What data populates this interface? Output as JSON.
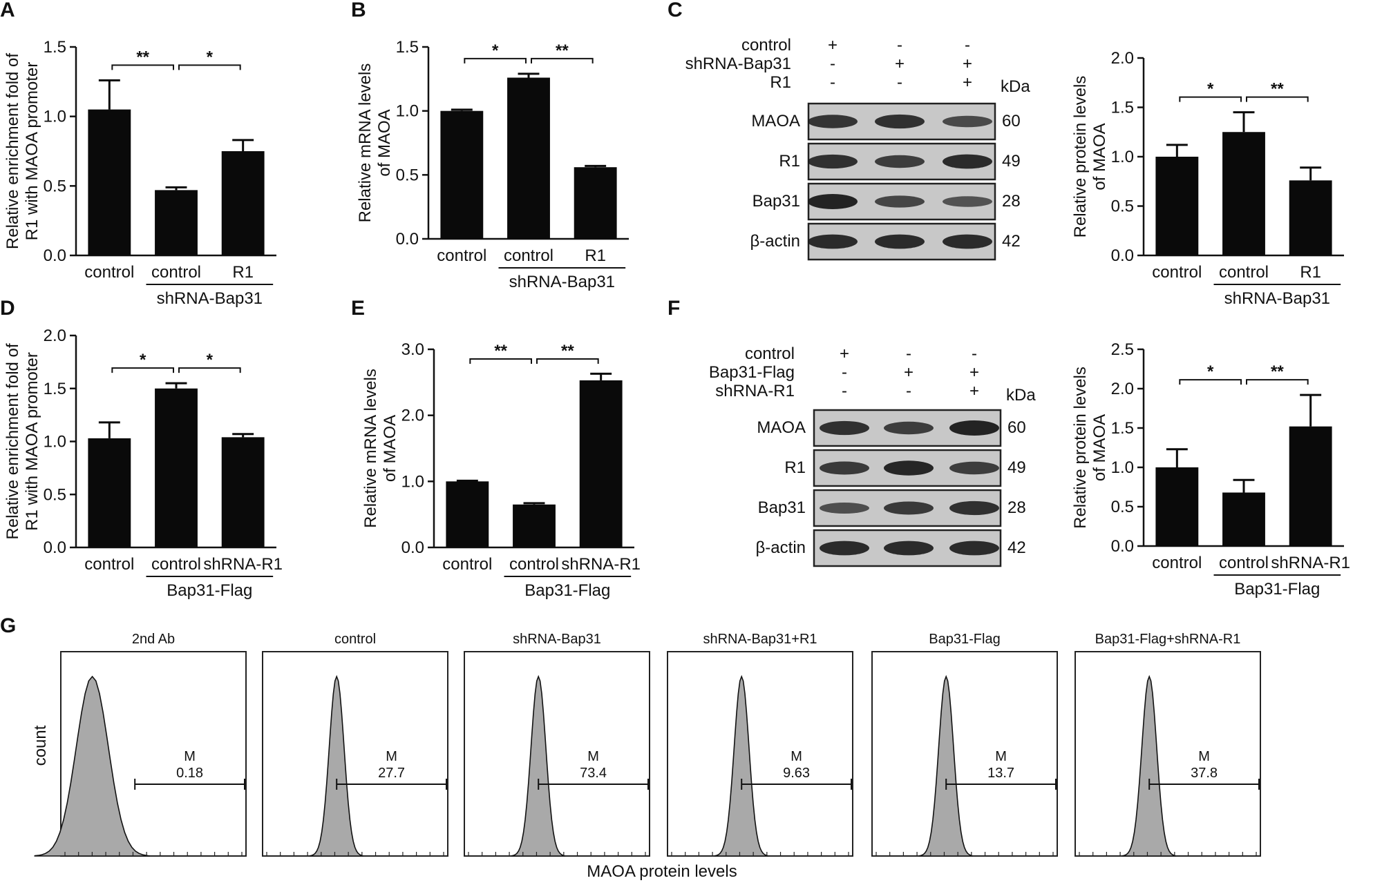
{
  "colors": {
    "bar": "#0a0a0a",
    "axis": "#111111",
    "band": "#1a1a1a",
    "blot_bg": "#c8c8c8",
    "hist_fill": "#a9a9a9"
  },
  "panels": {
    "A": {
      "letter": "A",
      "ylabel": "Relative enrichment fold of R1 with MAOA promoter"
    },
    "B": {
      "letter": "B",
      "ylabel": "Relative mRNA levels of MAOA"
    },
    "C": {
      "letter": "C",
      "ylabel": "Relative protein levels of MAOA"
    },
    "D": {
      "letter": "D",
      "ylabel": "Relative enrichment fold of R1 with MAOA promoter"
    },
    "E": {
      "letter": "E",
      "ylabel": "Relative mRNA levels of MAOA"
    },
    "F": {
      "letter": "F",
      "ylabel": "Relative protein levels of MAOA"
    },
    "G": {
      "letter": "G",
      "ylabel": "count",
      "xlabel": "MAOA protein levels"
    }
  },
  "blots": {
    "C": {
      "conditions": [
        {
          "label": "control",
          "marks": [
            "+",
            "-",
            "-"
          ]
        },
        {
          "label": "shRNA-Bap31",
          "marks": [
            "-",
            "+",
            "+"
          ]
        },
        {
          "label": "R1",
          "marks": [
            "-",
            "-",
            "+"
          ]
        }
      ],
      "kda_label": "kDa",
      "rows": [
        {
          "protein": "MAOA",
          "kda": "60",
          "intensity": [
            0.8,
            0.85,
            0.55
          ]
        },
        {
          "protein": "R1",
          "kda": "49",
          "intensity": [
            0.85,
            0.7,
            0.9
          ]
        },
        {
          "protein": "Bap31",
          "kda": "28",
          "intensity": [
            1.0,
            0.6,
            0.45
          ]
        },
        {
          "protein": "β-actin",
          "kda": "42",
          "intensity": [
            0.9,
            0.9,
            0.9
          ]
        }
      ]
    },
    "F": {
      "conditions": [
        {
          "label": "control",
          "marks": [
            "+",
            "-",
            "-"
          ]
        },
        {
          "label": "Bap31-Flag",
          "marks": [
            "-",
            "+",
            "+"
          ]
        },
        {
          "label": "shRNA-R1",
          "marks": [
            "-",
            "-",
            "+"
          ]
        }
      ],
      "kda_label": "kDa",
      "rows": [
        {
          "protein": "MAOA",
          "kda": "60",
          "intensity": [
            0.85,
            0.7,
            1.0
          ]
        },
        {
          "protein": "R1",
          "kda": "49",
          "intensity": [
            0.75,
            0.95,
            0.7
          ]
        },
        {
          "protein": "Bap31",
          "kda": "28",
          "intensity": [
            0.5,
            0.75,
            0.85
          ]
        },
        {
          "protein": "β-actin",
          "kda": "42",
          "intensity": [
            0.9,
            0.9,
            0.9
          ]
        }
      ]
    }
  },
  "chart_data": [
    {
      "id": "A",
      "type": "bar",
      "categories": [
        "control",
        "control",
        "R1"
      ],
      "values": [
        1.05,
        0.47,
        0.75
      ],
      "errors": [
        0.21,
        0.02,
        0.08
      ],
      "ylim": [
        0,
        1.5
      ],
      "yticks": [
        "0.0",
        "0.5",
        "1.0",
        "1.5"
      ],
      "group_label": "shRNA-Bap31",
      "ylabel": "Relative enrichment fold of R1 with MAOA promoter",
      "significance": [
        {
          "from": 0,
          "to": 1,
          "label": "**"
        },
        {
          "from": 1,
          "to": 2,
          "label": "*"
        }
      ]
    },
    {
      "id": "B",
      "type": "bar",
      "categories": [
        "control",
        "control",
        "R1"
      ],
      "values": [
        1.0,
        1.26,
        0.56
      ],
      "errors": [
        0.01,
        0.03,
        0.01
      ],
      "ylim": [
        0,
        1.5
      ],
      "yticks": [
        "0.0",
        "0.5",
        "1.0",
        "1.5"
      ],
      "group_label": "shRNA-Bap31",
      "ylabel": "Relative mRNA levels of MAOA",
      "significance": [
        {
          "from": 0,
          "to": 1,
          "label": "*"
        },
        {
          "from": 1,
          "to": 2,
          "label": "**"
        }
      ]
    },
    {
      "id": "C",
      "type": "bar",
      "categories": [
        "control",
        "control",
        "R1"
      ],
      "values": [
        1.0,
        1.25,
        0.76
      ],
      "errors": [
        0.12,
        0.2,
        0.13
      ],
      "ylim": [
        0,
        2.0
      ],
      "yticks": [
        "0.0",
        "0.5",
        "1.0",
        "1.5",
        "2.0"
      ],
      "group_label": "shRNA-Bap31",
      "ylabel": "Relative protein levels of MAOA",
      "significance": [
        {
          "from": 0,
          "to": 1,
          "label": "*"
        },
        {
          "from": 1,
          "to": 2,
          "label": "**"
        }
      ]
    },
    {
      "id": "D",
      "type": "bar",
      "categories": [
        "control",
        "control",
        "shRNA-R1"
      ],
      "values": [
        1.03,
        1.5,
        1.04
      ],
      "errors": [
        0.15,
        0.05,
        0.03
      ],
      "ylim": [
        0,
        2.0
      ],
      "yticks": [
        "0.0",
        "0.5",
        "1.0",
        "1.5",
        "2.0"
      ],
      "group_label": "Bap31-Flag",
      "ylabel": "Relative enrichment fold of R1 with MAOA promoter",
      "significance": [
        {
          "from": 0,
          "to": 1,
          "label": "*"
        },
        {
          "from": 1,
          "to": 2,
          "label": "*"
        }
      ]
    },
    {
      "id": "E",
      "type": "bar",
      "categories": [
        "control",
        "control",
        "shRNA-R1"
      ],
      "values": [
        1.0,
        0.65,
        2.53
      ],
      "errors": [
        0.01,
        0.02,
        0.1
      ],
      "ylim": [
        0,
        3.0
      ],
      "yticks": [
        "0.0",
        "1.0",
        "2.0",
        "3.0"
      ],
      "group_label": "Bap31-Flag",
      "ylabel": "Relative mRNA levels of MAOA",
      "significance": [
        {
          "from": 0,
          "to": 1,
          "label": "**"
        },
        {
          "from": 1,
          "to": 2,
          "label": "**"
        }
      ]
    },
    {
      "id": "F",
      "type": "bar",
      "categories": [
        "control",
        "control",
        "shRNA-R1"
      ],
      "values": [
        1.0,
        0.68,
        1.52
      ],
      "errors": [
        0.23,
        0.16,
        0.4
      ],
      "ylim": [
        0,
        2.5
      ],
      "yticks": [
        "0.0",
        "0.5",
        "1.0",
        "1.5",
        "2.0",
        "2.5"
      ],
      "group_label": "Bap31-Flag",
      "ylabel": "Relative protein levels of MAOA",
      "significance": [
        {
          "from": 0,
          "to": 1,
          "label": "*"
        },
        {
          "from": 1,
          "to": 2,
          "label": "**"
        }
      ]
    },
    {
      "id": "G",
      "type": "area",
      "xlabel": "MAOA protein levels",
      "ylabel": "count",
      "histograms": [
        {
          "title": "2nd Ab",
          "gate_label": "M",
          "gate_value": "0.18"
        },
        {
          "title": "control",
          "gate_label": "M",
          "gate_value": "27.7"
        },
        {
          "title": "shRNA-Bap31",
          "gate_label": "M",
          "gate_value": "73.4"
        },
        {
          "title": "shRNA-Bap31+R1",
          "gate_label": "M",
          "gate_value": "9.63"
        },
        {
          "title": "Bap31-Flag",
          "gate_label": "M",
          "gate_value": "13.7"
        },
        {
          "title": "Bap31-Flag+shRNA-R1",
          "gate_label": "M",
          "gate_value": "37.8"
        }
      ]
    }
  ]
}
